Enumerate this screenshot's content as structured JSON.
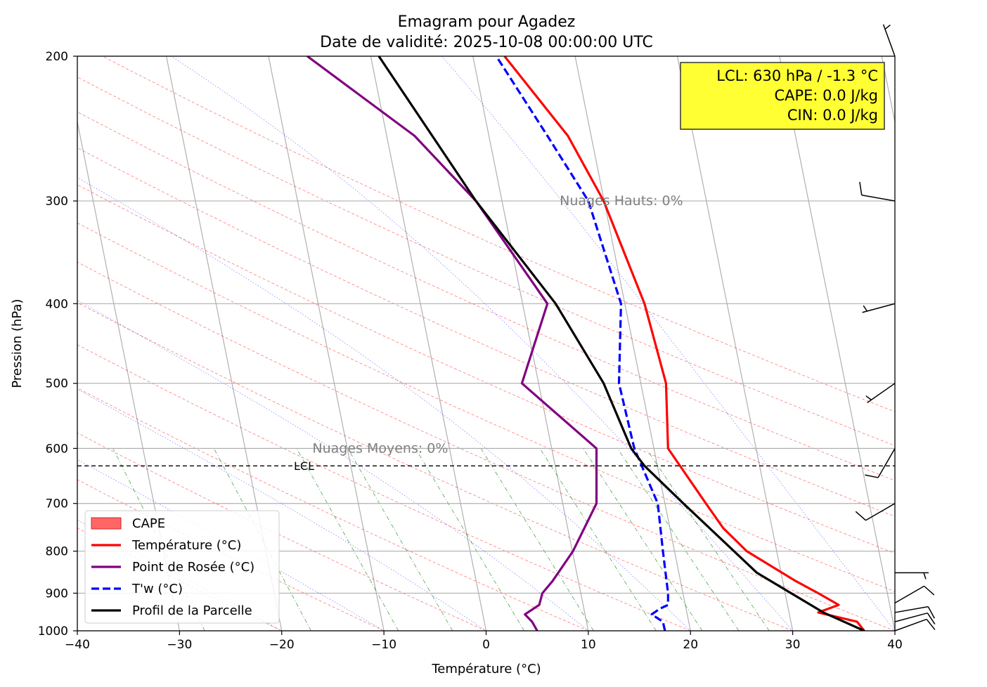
{
  "chart_data": {
    "type": "line",
    "title": "Emagram pour Agadez",
    "subtitle": "Date de validité: 2025-10-08 00:00:00 UTC",
    "xlabel": "Température (°C)",
    "ylabel": "Pression (hPa)",
    "xlim": [
      -40,
      40
    ],
    "ylim": [
      1000,
      200
    ],
    "xticks": [
      -40,
      -30,
      -20,
      -10,
      0,
      10,
      20,
      30,
      40
    ],
    "xtick_labels": [
      "−40",
      "−30",
      "−20",
      "−10",
      "0",
      "10",
      "20",
      "30",
      "40"
    ],
    "yticks": [
      200,
      300,
      400,
      500,
      600,
      700,
      800,
      900,
      1000
    ],
    "ytick_labels": [
      "200",
      "300",
      "400",
      "500",
      "600",
      "700",
      "800",
      "900",
      "1000"
    ],
    "grid": true,
    "series": [
      {
        "name": "Température (°C)",
        "color": "#ff0000",
        "style": "solid",
        "points": [
          [
            37.0,
            1000
          ],
          [
            36.3,
            975
          ],
          [
            32.5,
            950
          ],
          [
            34.5,
            930
          ],
          [
            32.5,
            900
          ],
          [
            30.3,
            870
          ],
          [
            25.5,
            800
          ],
          [
            23.2,
            750
          ],
          [
            21.5,
            700
          ],
          [
            17.8,
            600
          ],
          [
            17.6,
            500
          ],
          [
            15.5,
            400
          ],
          [
            11.5,
            300
          ],
          [
            8.0,
            250
          ],
          [
            1.8,
            200
          ]
        ]
      },
      {
        "name": "Point de Rosée (°C)",
        "color": "#800080",
        "style": "solid",
        "points": [
          [
            5.0,
            1000
          ],
          [
            4.5,
            975
          ],
          [
            3.8,
            955
          ],
          [
            5.2,
            930
          ],
          [
            5.5,
            900
          ],
          [
            6.5,
            870
          ],
          [
            8.5,
            800
          ],
          [
            10.8,
            700
          ],
          [
            10.8,
            600
          ],
          [
            3.5,
            500
          ],
          [
            6.0,
            400
          ],
          [
            -1.0,
            300
          ],
          [
            -7.0,
            250
          ],
          [
            -17.5,
            200
          ]
        ]
      },
      {
        "name": "T'w (°C)",
        "color": "#0000ff",
        "style": "dashed",
        "points": [
          [
            17.5,
            1000
          ],
          [
            17.3,
            975
          ],
          [
            16.2,
            955
          ],
          [
            17.0,
            940
          ],
          [
            17.8,
            930
          ],
          [
            17.8,
            900
          ],
          [
            17.3,
            800
          ],
          [
            16.8,
            700
          ],
          [
            14.5,
            600
          ],
          [
            13.0,
            500
          ],
          [
            13.2,
            400
          ],
          [
            10.0,
            300
          ],
          [
            6.0,
            250
          ],
          [
            1.0,
            200
          ]
        ]
      },
      {
        "name": "Profil de la Parcelle",
        "color": "#000000",
        "style": "solid",
        "points": [
          [
            37.0,
            1000
          ],
          [
            33.0,
            950
          ],
          [
            26.5,
            850
          ],
          [
            19.3,
            700
          ],
          [
            15.5,
            630
          ],
          [
            14.2,
            600
          ],
          [
            11.5,
            500
          ],
          [
            6.8,
            400
          ],
          [
            -1.0,
            300
          ],
          [
            -10.5,
            200
          ]
        ]
      }
    ],
    "lcl_level_hpa": 630,
    "lcl_label": "LCL",
    "cloud_annotations": [
      {
        "label": "Nuages Hauts: 0%",
        "x": 7.2,
        "p": 300
      },
      {
        "label": "Nuages Moyens: 0%",
        "x": -17.0,
        "p": 600
      }
    ],
    "info_box": {
      "lines": [
        "LCL: 630 hPa / -1.3 °C",
        "CAPE: 0.0 J/kg",
        "CIN: 0.0 J/kg"
      ],
      "background": "#ffff33"
    },
    "legend": {
      "position": "lower-left",
      "entries": [
        {
          "label": "CAPE",
          "kind": "patch",
          "color": "#ff6666"
        },
        {
          "label": "Température (°C)",
          "kind": "line",
          "color": "#ff0000",
          "style": "solid"
        },
        {
          "label": "Point de Rosée (°C)",
          "kind": "line",
          "color": "#800080",
          "style": "solid"
        },
        {
          "label": "T'w (°C)",
          "kind": "line",
          "color": "#0000ff",
          "style": "dashed"
        },
        {
          "label": "Profil de la Parcelle",
          "kind": "line",
          "color": "#000000",
          "style": "solid"
        }
      ]
    },
    "reference_lines": {
      "isotherms_slanted_gray": [
        -40,
        -30,
        -20,
        -10,
        0,
        10,
        20,
        30,
        40,
        50,
        60,
        70,
        80,
        90,
        100,
        110,
        120
      ],
      "dry_adiabats_theta_C": [
        -20,
        -10,
        0,
        10,
        20,
        30,
        40,
        50,
        60,
        70,
        80,
        90,
        100
      ],
      "moist_adiabats_start_C": [
        -20,
        -10,
        0,
        10,
        20,
        30,
        40
      ],
      "mixing_ratio_gkg": [
        0.4,
        1,
        2,
        3,
        5,
        8,
        12,
        16,
        20,
        24
      ]
    },
    "wind_barbs": [
      {
        "p": 1000,
        "dir_deg": 70,
        "speed_kt": 10
      },
      {
        "p": 975,
        "dir_deg": 75,
        "speed_kt": 10
      },
      {
        "p": 950,
        "dir_deg": 80,
        "speed_kt": 10
      },
      {
        "p": 925,
        "dir_deg": 60,
        "speed_kt": 10
      },
      {
        "p": 850,
        "dir_deg": 90,
        "speed_kt": 5
      },
      {
        "p": 700,
        "dir_deg": 240,
        "speed_kt": 10
      },
      {
        "p": 600,
        "dir_deg": 210,
        "speed_kt": 10
      },
      {
        "p": 500,
        "dir_deg": 235,
        "speed_kt": 5
      },
      {
        "p": 400,
        "dir_deg": 255,
        "speed_kt": 5
      },
      {
        "p": 300,
        "dir_deg": 280,
        "speed_kt": 10
      },
      {
        "p": 200,
        "dir_deg": 340,
        "speed_kt": 5
      }
    ]
  }
}
